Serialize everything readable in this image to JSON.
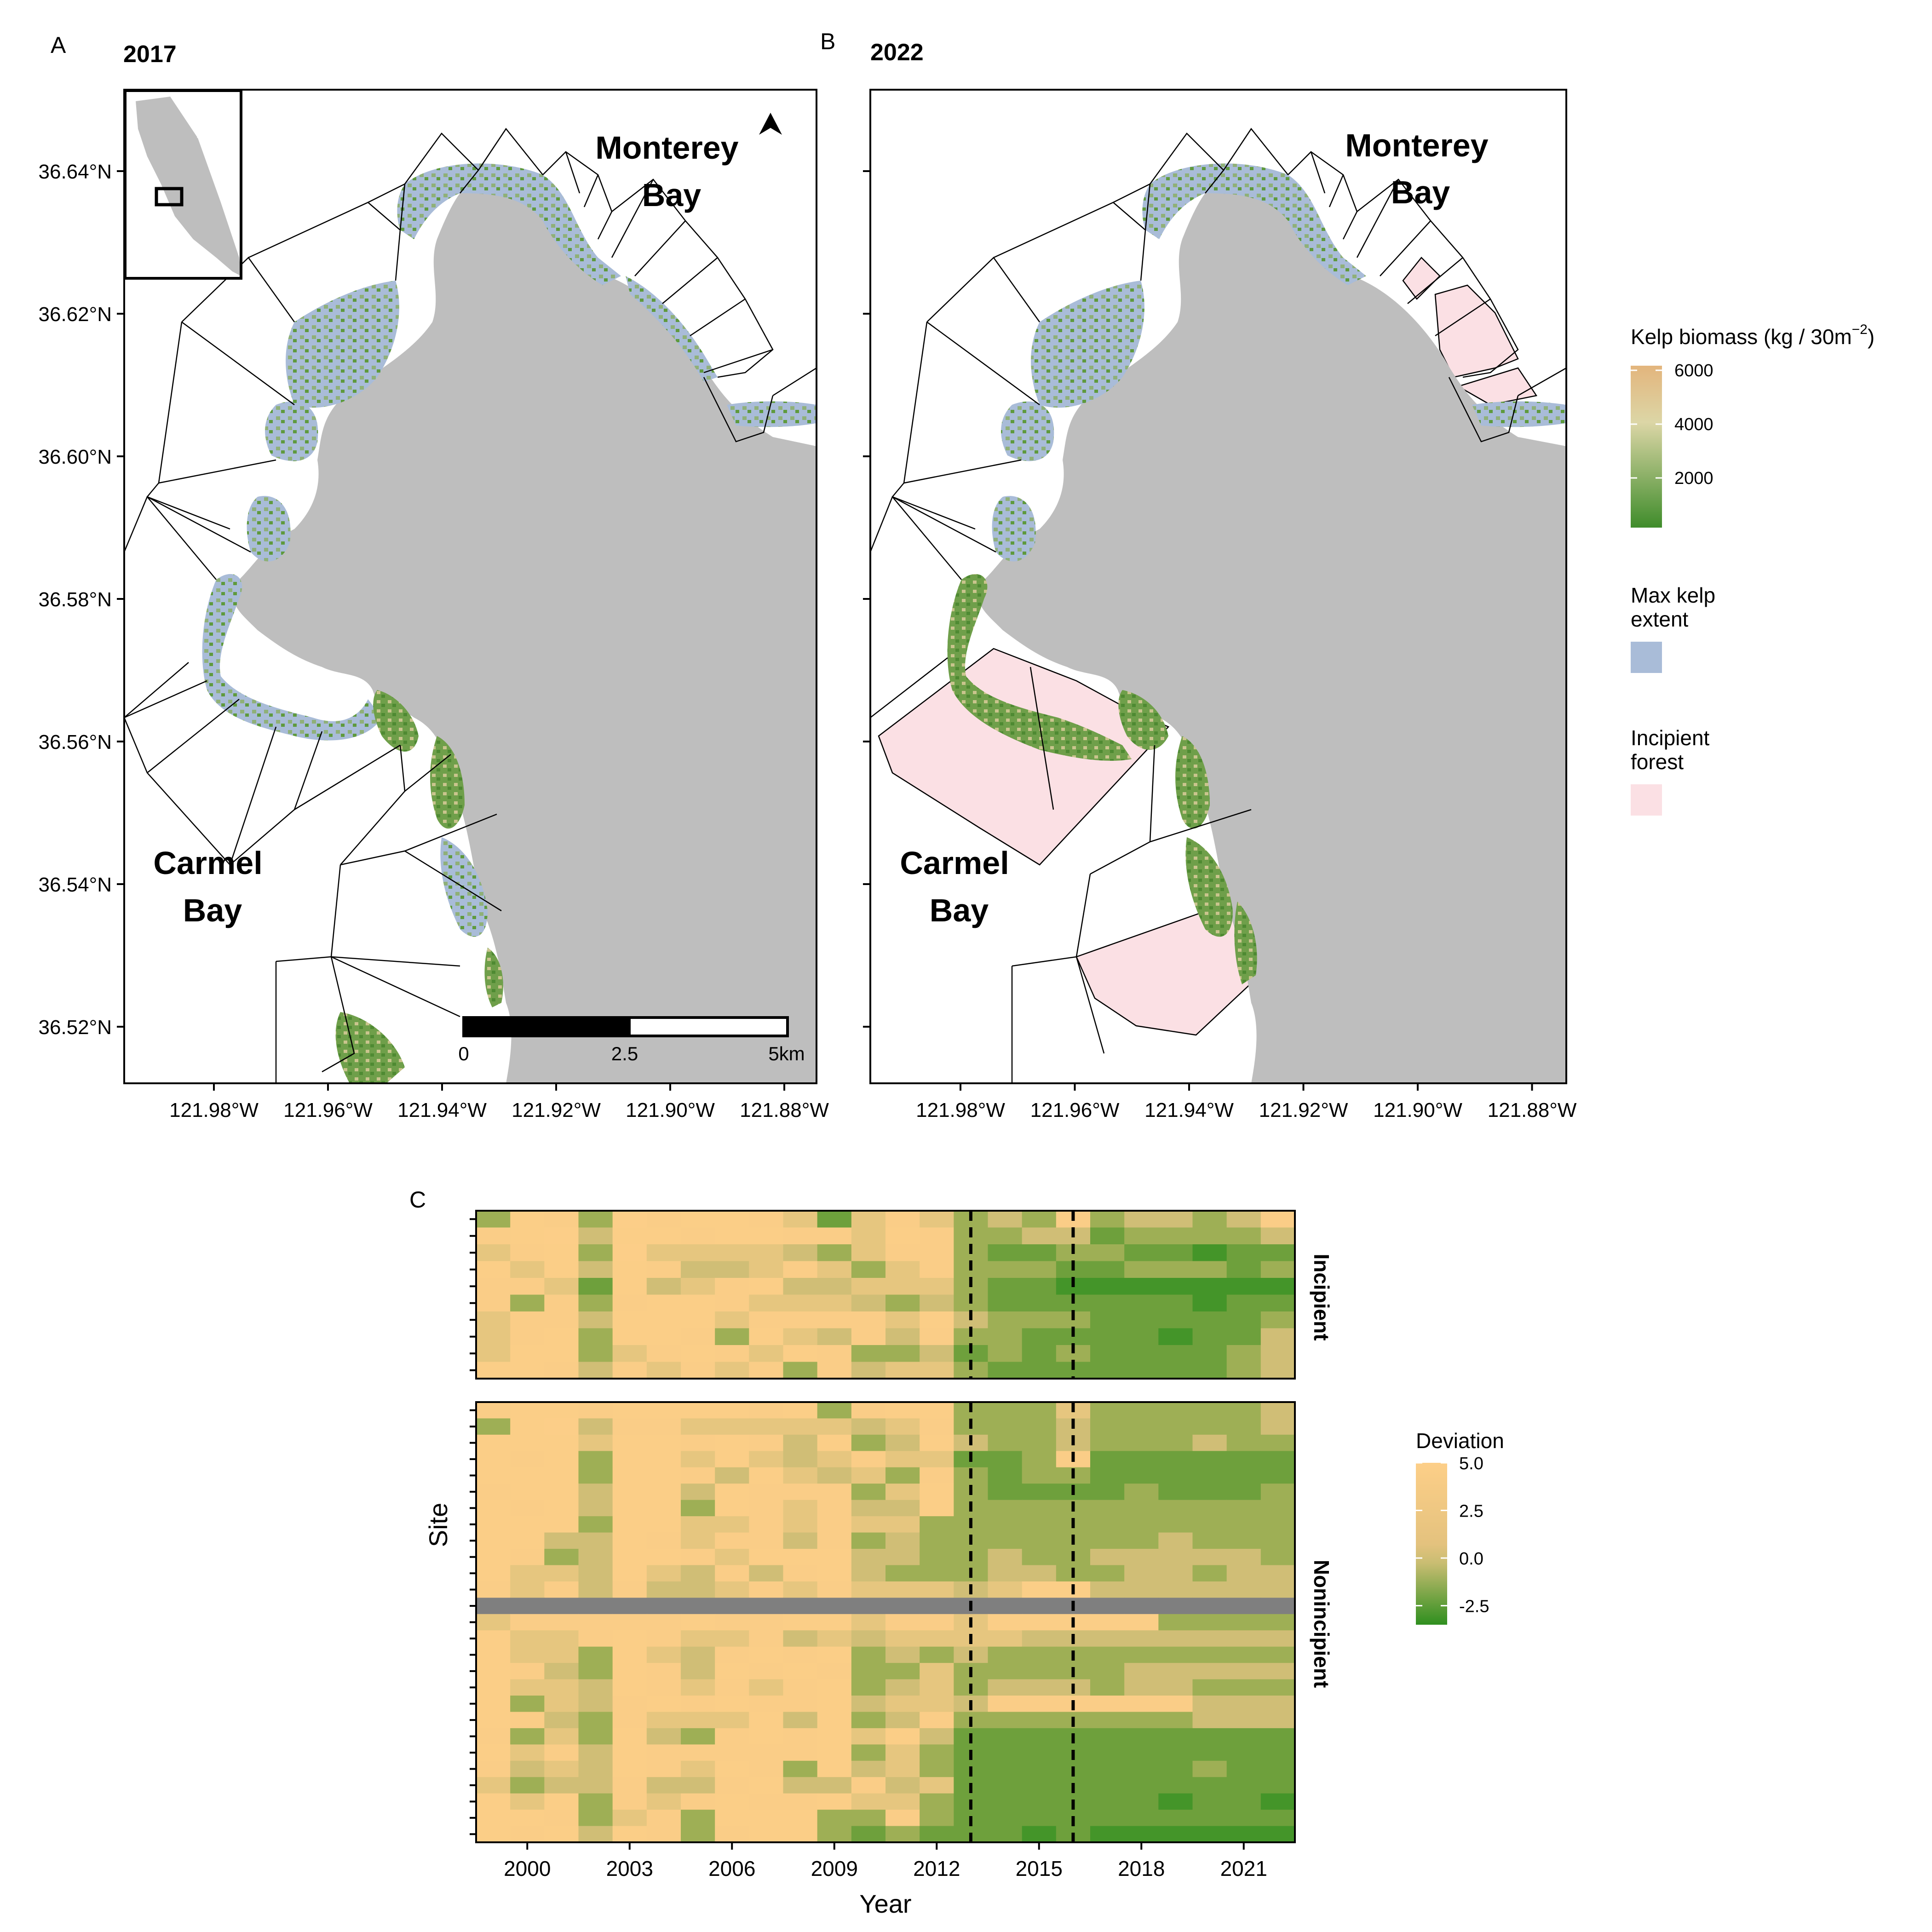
{
  "panels": {
    "a": {
      "letter": "A",
      "year": "2017",
      "label_bay_top": [
        "Monterey",
        "Bay"
      ],
      "label_bay_bottom": [
        "Carmel",
        "Bay"
      ],
      "lat_ticks": [
        "36.64°N",
        "36.62°N",
        "36.60°N",
        "36.58°N",
        "36.56°N",
        "36.54°N",
        "36.52°N"
      ],
      "lon_ticks": [
        "121.98°W",
        "121.96°W",
        "121.94°W",
        "121.92°W",
        "121.90°W",
        "121.88°W"
      ],
      "scale_labels": [
        "0",
        "2.5",
        "5km"
      ]
    },
    "b": {
      "letter": "B",
      "year": "2022",
      "label_bay_top": [
        "Monterey",
        "Bay"
      ],
      "label_bay_bottom": [
        "Carmel",
        "Bay"
      ],
      "lon_ticks": [
        "121.98°W",
        "121.96°W",
        "121.94°W",
        "121.92°W",
        "121.90°W",
        "121.88°W"
      ]
    },
    "c": {
      "letter": "C"
    }
  },
  "legend": {
    "biomass_title": "Kelp biomass (kg / 30m",
    "biomass_exp": "−2",
    "biomass_close": ")",
    "biomass_ticks": [
      "6000",
      "4000",
      "2000"
    ],
    "max_extent_title": [
      "Max kelp",
      "extent"
    ],
    "incipient_title": [
      "Incipient",
      "forest"
    ],
    "colors": {
      "kelp_high": "#e3b57d",
      "kelp_mid": "#dcd6a6",
      "kelp_low": "#3f8c2b",
      "max_extent": "#a9bcd8",
      "incipient": "#fbe0e4",
      "land": "#bebebe"
    }
  },
  "chart_data": {
    "type": "heatmap",
    "xlabel": "Year",
    "ylabel": "Site",
    "x_tick_labels": [
      "2000",
      "2003",
      "2006",
      "2009",
      "2012",
      "2015",
      "2018",
      "2021"
    ],
    "years": [
      1999,
      2000,
      2001,
      2002,
      2003,
      2004,
      2005,
      2006,
      2007,
      2008,
      2009,
      2010,
      2011,
      2012,
      2013,
      2014,
      2015,
      2016,
      2017,
      2018,
      2019,
      2020,
      2021,
      2022
    ],
    "vlines": [
      2013.5,
      2016.5
    ],
    "colorbar": {
      "title": "Deviation",
      "ticks": [
        "5.0",
        "2.5",
        "0.0",
        "-2.5"
      ],
      "min": -3.5,
      "max": 5.0
    },
    "facets": [
      {
        "name": "Incipient",
        "rows": [
          [
            -1,
            3,
            2,
            -1,
            4,
            2,
            3,
            3,
            2,
            1,
            -2,
            1,
            2,
            1,
            -1,
            0,
            -1,
            2,
            -1,
            0,
            0,
            -1,
            0,
            2
          ],
          [
            2,
            3,
            4,
            0,
            3,
            3,
            2,
            3,
            3,
            2,
            2,
            1,
            3,
            2,
            -1,
            -1,
            0,
            0,
            -2,
            -1,
            -1,
            -1,
            -1,
            0
          ],
          [
            1,
            2,
            3,
            -1,
            4,
            1,
            1,
            1,
            1,
            0,
            -1,
            1,
            2,
            2,
            -1,
            -2,
            -2,
            -1,
            -1,
            -2,
            -2,
            -3,
            -2,
            -2
          ],
          [
            3,
            1,
            3,
            0,
            3,
            2,
            0,
            0,
            1,
            2,
            1,
            -1,
            1,
            2,
            -1,
            -1,
            -1,
            -2,
            -2,
            -1,
            -1,
            -1,
            -2,
            -1
          ],
          [
            2,
            2,
            1,
            -2,
            3,
            0,
            1,
            2,
            3,
            0,
            0,
            1,
            1,
            1,
            -1,
            -2,
            -2,
            -3,
            -3,
            -3,
            -3,
            -3,
            -3,
            -3
          ],
          [
            2,
            -1,
            2,
            -1,
            2,
            3,
            3,
            2,
            1,
            1,
            1,
            0,
            -1,
            0,
            -1,
            -2,
            -2,
            -2,
            -2,
            -2,
            -2,
            -3,
            -2,
            -2
          ],
          [
            1,
            2,
            2,
            0,
            3,
            3,
            3,
            1,
            2,
            2,
            2,
            2,
            1,
            3,
            0,
            -1,
            -1,
            -1,
            -2,
            -2,
            -2,
            -2,
            -2,
            -1
          ],
          [
            1,
            2,
            3,
            -1,
            3,
            3,
            2,
            -1,
            3,
            1,
            0,
            2,
            0,
            2,
            -1,
            -1,
            -2,
            -2,
            -2,
            -2,
            -3,
            -2,
            -2,
            0
          ],
          [
            1,
            3,
            3,
            -1,
            1,
            2,
            3,
            2,
            1,
            3,
            2,
            -1,
            -1,
            0,
            -2,
            -1,
            -2,
            -1,
            -2,
            -2,
            -2,
            -2,
            -1,
            0
          ],
          [
            3,
            3,
            2,
            0,
            2,
            1,
            2,
            1,
            2,
            -1,
            2,
            0,
            1,
            1,
            -1,
            -2,
            -2,
            -2,
            -2,
            -2,
            -2,
            -2,
            -1,
            0
          ]
        ]
      },
      {
        "name": "Nonincipient",
        "rows": [
          [
            2,
            3,
            3,
            2,
            3,
            3,
            3,
            3,
            2,
            3,
            -1,
            2,
            3,
            3,
            -1,
            -1,
            -1,
            1,
            -1,
            -1,
            -1,
            -1,
            -1,
            0
          ],
          [
            -1,
            3,
            4,
            0,
            2,
            2,
            1,
            1,
            1,
            1,
            1,
            0,
            1,
            2,
            -1,
            -1,
            -1,
            0,
            -1,
            -1,
            -1,
            -1,
            -1,
            0
          ],
          [
            3,
            3,
            3,
            1,
            3,
            3,
            2,
            3,
            2,
            0,
            3,
            -1,
            0,
            3,
            0,
            -1,
            -1,
            0,
            -1,
            -1,
            -1,
            0,
            -1,
            -1
          ],
          [
            3,
            2,
            3,
            -1,
            3,
            3,
            1,
            3,
            1,
            0,
            1,
            2,
            1,
            1,
            -2,
            -2,
            -1,
            2,
            -2,
            -2,
            -2,
            -2,
            -2,
            -2
          ],
          [
            3,
            3,
            3,
            -1,
            3,
            3,
            2,
            0,
            3,
            1,
            0,
            1,
            -1,
            2,
            -1,
            -2,
            -1,
            -1,
            -2,
            -2,
            -2,
            -2,
            -2,
            -2
          ],
          [
            2,
            3,
            3,
            0,
            3,
            3,
            0,
            3,
            2,
            2,
            2,
            -1,
            1,
            3,
            -1,
            -2,
            -2,
            -2,
            -2,
            -1,
            -2,
            -2,
            -2,
            -1
          ],
          [
            3,
            2,
            3,
            0,
            3,
            3,
            -1,
            3,
            2,
            1,
            2,
            0,
            0,
            3,
            -1,
            -1,
            -1,
            -1,
            -1,
            -1,
            -1,
            -1,
            -1,
            -1
          ],
          [
            3,
            3,
            3,
            -1,
            3,
            3,
            1,
            1,
            2,
            1,
            2,
            1,
            1,
            -1,
            -1,
            -1,
            -1,
            -1,
            -1,
            -1,
            -1,
            -1,
            -1,
            -1
          ],
          [
            3,
            3,
            0,
            0,
            3,
            2,
            1,
            2,
            2,
            0,
            2,
            -1,
            0,
            -1,
            -1,
            -1,
            -1,
            -1,
            -1,
            -1,
            0,
            -1,
            -1,
            -1
          ],
          [
            3,
            2,
            -1,
            0,
            3,
            3,
            2,
            1,
            3,
            3,
            3,
            0,
            0,
            -1,
            -1,
            0,
            -1,
            -1,
            0,
            0,
            0,
            0,
            0,
            -1
          ],
          [
            3,
            1,
            1,
            0,
            3,
            1,
            0,
            2,
            0,
            2,
            3,
            0,
            -1,
            -1,
            -1,
            0,
            0,
            -1,
            -1,
            0,
            0,
            -1,
            0,
            0
          ],
          [
            2,
            1,
            2,
            0,
            2,
            0,
            0,
            1,
            2,
            1,
            2,
            1,
            1,
            1,
            0,
            1,
            3,
            3,
            0,
            0,
            0,
            0,
            0,
            0
          ],
          [
            "NA",
            "NA",
            "NA",
            "NA",
            "NA",
            "NA",
            "NA",
            "NA",
            "NA",
            "NA",
            "NA",
            "NA",
            "NA",
            "NA",
            "NA",
            "NA",
            "NA",
            "NA",
            "NA",
            "NA",
            "NA",
            "NA",
            "NA",
            "NA"
          ],
          [
            1,
            2,
            2,
            2,
            2,
            2,
            3,
            2,
            2,
            3,
            3,
            1,
            2,
            2,
            1,
            3,
            3,
            3,
            3,
            3,
            -1,
            -1,
            -1,
            -1
          ],
          [
            3,
            1,
            1,
            2,
            3,
            2,
            1,
            1,
            2,
            0,
            1,
            0,
            1,
            1,
            1,
            1,
            0,
            0,
            0,
            0,
            0,
            0,
            0,
            0
          ],
          [
            3,
            1,
            1,
            -1,
            3,
            1,
            0,
            2,
            3,
            2,
            3,
            -1,
            0,
            -1,
            0,
            -1,
            -1,
            -1,
            -1,
            -1,
            -1,
            -1,
            -1,
            -1
          ],
          [
            3,
            2,
            0,
            -1,
            3,
            2,
            0,
            3,
            2,
            3,
            2,
            -1,
            -1,
            1,
            -1,
            -1,
            -1,
            -1,
            -1,
            0,
            0,
            0,
            0,
            0
          ],
          [
            3,
            1,
            1,
            0,
            3,
            2,
            1,
            2,
            1,
            2,
            3,
            -1,
            0,
            1,
            -1,
            0,
            0,
            0,
            -1,
            0,
            0,
            -1,
            -1,
            -1
          ],
          [
            3,
            -1,
            1,
            0,
            2,
            3,
            2,
            3,
            2,
            2,
            3,
            0,
            1,
            1,
            0,
            2,
            2,
            2,
            2,
            2,
            2,
            0,
            0,
            0
          ],
          [
            3,
            2,
            0,
            -1,
            2,
            1,
            1,
            1,
            3,
            0,
            3,
            -1,
            0,
            2,
            -1,
            -1,
            -1,
            -1,
            -1,
            -1,
            -1,
            0,
            0,
            0
          ],
          [
            2,
            -1,
            1,
            -1,
            3,
            0,
            -1,
            2,
            3,
            2,
            3,
            1,
            3,
            0,
            -2,
            -2,
            -2,
            -2,
            -2,
            -2,
            -2,
            -2,
            -2,
            -2
          ],
          [
            3,
            1,
            2,
            0,
            3,
            2,
            2,
            2,
            2,
            2,
            3,
            -1,
            1,
            -1,
            -2,
            -2,
            -2,
            -2,
            -2,
            -2,
            -2,
            -2,
            -2,
            -2
          ],
          [
            2,
            0,
            1,
            0,
            3,
            2,
            1,
            3,
            2,
            -1,
            3,
            0,
            1,
            -1,
            -2,
            -2,
            -2,
            -2,
            -2,
            -2,
            -2,
            -1,
            -2,
            -2
          ],
          [
            1,
            -1,
            0,
            0,
            2,
            0,
            0,
            2,
            3,
            0,
            0,
            2,
            0,
            1,
            -2,
            -2,
            -2,
            -2,
            -2,
            -2,
            -2,
            -2,
            -2,
            -2
          ],
          [
            3,
            1,
            3,
            -1,
            2,
            1,
            2,
            3,
            2,
            2,
            3,
            1,
            1,
            -1,
            -2,
            -2,
            -2,
            -2,
            -2,
            -2,
            -3,
            -2,
            -2,
            -3
          ],
          [
            3,
            3,
            2,
            -1,
            1,
            2,
            -1,
            3,
            3,
            3,
            -1,
            -1,
            2,
            -1,
            -2,
            -2,
            -2,
            -2,
            -2,
            -2,
            -2,
            -2,
            -2,
            -2
          ],
          [
            3,
            2,
            3,
            0,
            3,
            2,
            -1,
            2,
            3,
            3,
            -1,
            -2,
            -1,
            -2,
            -2,
            -2,
            -3,
            -2,
            -3,
            -3,
            -3,
            -3,
            -3,
            -3
          ]
        ]
      }
    ]
  }
}
